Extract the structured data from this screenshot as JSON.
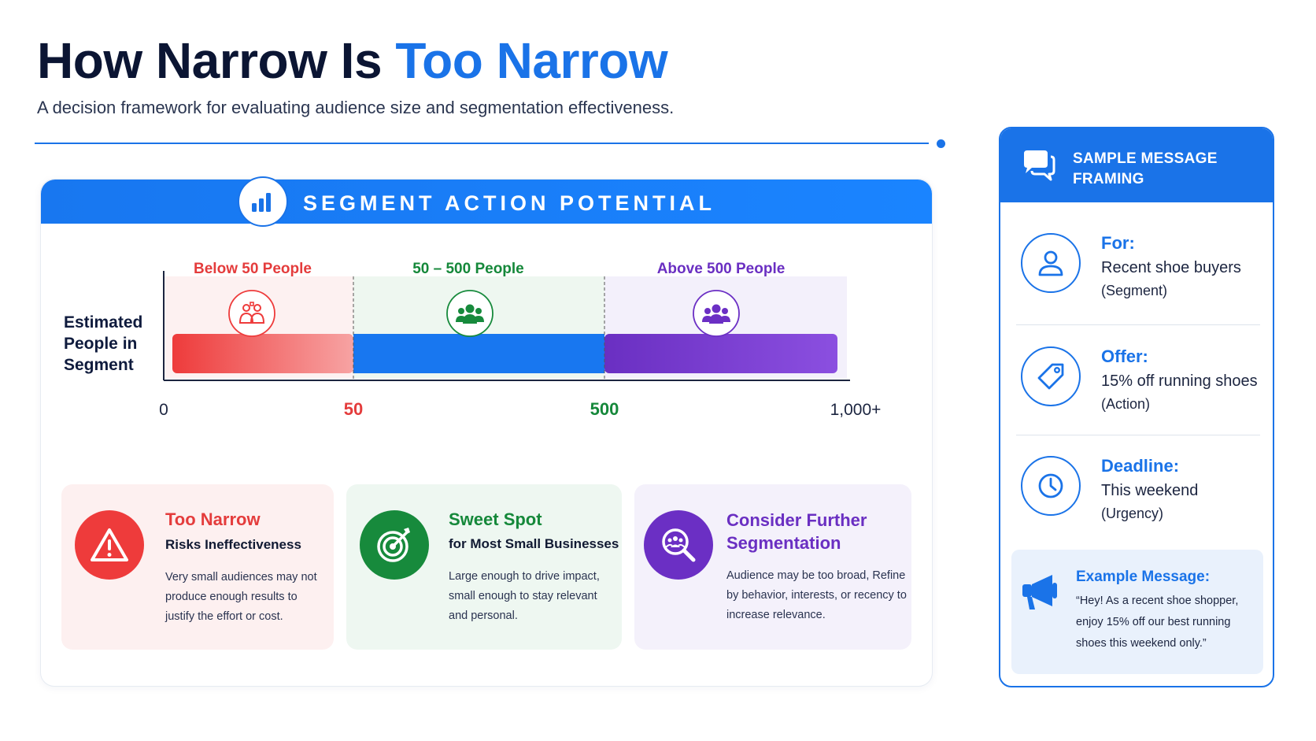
{
  "header": {
    "title_main": "How Narrow Is ",
    "title_accent": "Too Narrow",
    "subtitle": "A decision framework for evaluating audience size and segmentation effectiveness."
  },
  "card": {
    "title": "SEGMENT ACTION POTENTIAL",
    "icon": "bar-chart-icon"
  },
  "chart_data": {
    "type": "bar",
    "orientation": "horizontal-ranges",
    "ylabel": "Estimated\nPeople in\nSegment",
    "ticks": [
      {
        "label": "0",
        "value": 0,
        "color": "#1c2540"
      },
      {
        "label": "50",
        "value": 50,
        "color": "#e43c3c"
      },
      {
        "label": "500",
        "value": 500,
        "color": "#15883a"
      },
      {
        "label": "1,000+",
        "value": 1000,
        "color": "#1c2540"
      }
    ],
    "ranges": [
      {
        "label": "Below 50 People",
        "start": 0,
        "end": 50,
        "color": "#ee3b3b",
        "label_color": "#e43c3c",
        "icon": "small-group-icon"
      },
      {
        "label": "50 – 500 People",
        "start": 50,
        "end": 500,
        "color": "#1877f0",
        "label_color": "#15883a",
        "icon": "group-icon"
      },
      {
        "label": "Above 500 People",
        "start": 500,
        "end": 1000,
        "color": "#7a3fd6",
        "label_color": "#6a2fc2",
        "icon": "crowd-icon"
      }
    ],
    "grid": false
  },
  "info": {
    "too_narrow": {
      "title": "Too Narrow",
      "subtitle": "Risks Ineffectiveness",
      "body": "Very small audiences may not produce enough results to justify the effort or cost.",
      "icon": "warning-icon"
    },
    "sweet_spot": {
      "title": "Sweet Spot",
      "subtitle": "for Most Small Businesses",
      "body": "Large enough to drive impact, small enough to stay relevant and personal.",
      "icon": "target-icon"
    },
    "further": {
      "title": "Consider Further Segmentation",
      "body": "Audience may be too broad, Refine by behavior, interests, or recency to increase relevance.",
      "icon": "search-people-icon"
    }
  },
  "panel": {
    "title": "SAMPLE MESSAGE FRAMING",
    "icon": "chat-icon",
    "rows": [
      {
        "label": "For:",
        "value": "Recent shoe buyers",
        "note": "(Segment)",
        "icon": "person-icon"
      },
      {
        "label": "Offer:",
        "value": "15% off running shoes",
        "note": "(Action)",
        "icon": "tag-icon"
      },
      {
        "label": "Deadline:",
        "value": "This weekend",
        "note": "(Urgency)",
        "icon": "clock-icon"
      }
    ],
    "example": {
      "title": "Example Message:",
      "body": "“Hey! As a recent shoe shopper, enjoy 15% off our best running shoes this weekend only.”",
      "icon": "megaphone-icon"
    }
  },
  "colors": {
    "accent": "#1a73e8",
    "red": "#ee3b3b",
    "green": "#15883a",
    "purple": "#6a2fc2"
  }
}
